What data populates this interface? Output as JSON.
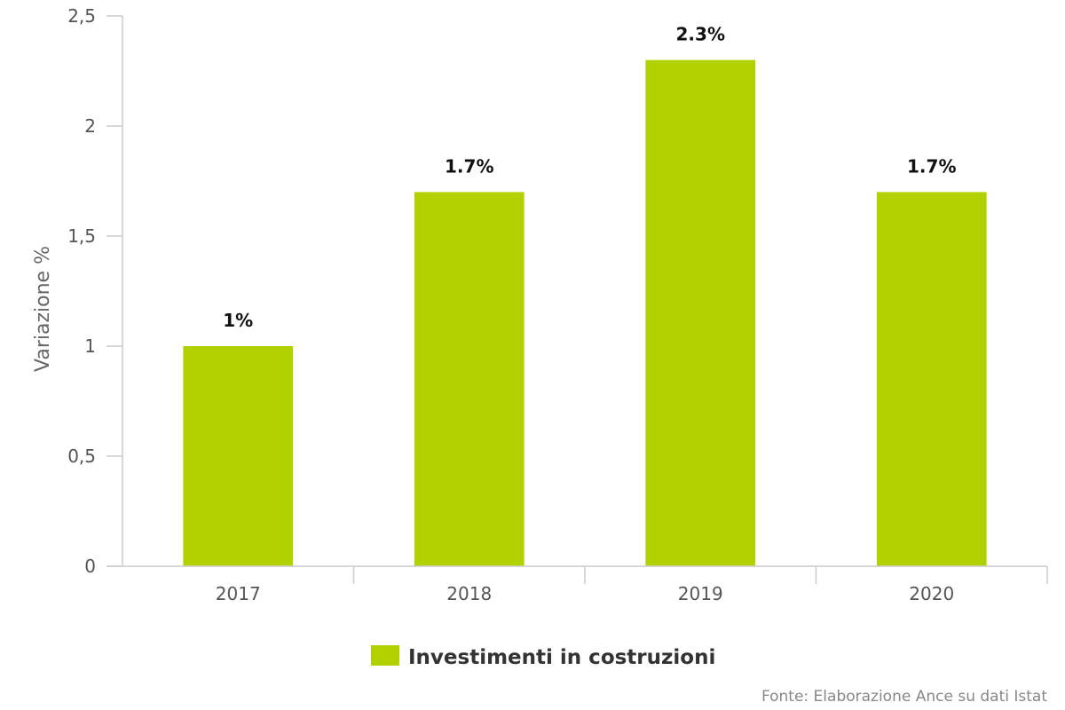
{
  "chart_data": {
    "type": "bar",
    "categories": [
      "2017",
      "2018",
      "2019",
      "2020"
    ],
    "series": [
      {
        "name": "Investimenti in costruzioni",
        "values": [
          1.0,
          1.7,
          2.3,
          1.7
        ],
        "data_labels": [
          "1%",
          "1.7%",
          "2.3%",
          "1.7%"
        ],
        "color": "#b2d100"
      }
    ],
    "ylabel": "Variazione %",
    "ylim": [
      0,
      2.5
    ],
    "yticks": [
      0,
      0.5,
      1,
      1.5,
      2,
      2.5
    ],
    "ytick_labels": [
      "0",
      "0,5",
      "1",
      "1,5",
      "2",
      "2,5"
    ],
    "grid": false,
    "legend_position": "bottom-center",
    "credit": "Fonte: Elaborazione Ance su dati Istat"
  }
}
